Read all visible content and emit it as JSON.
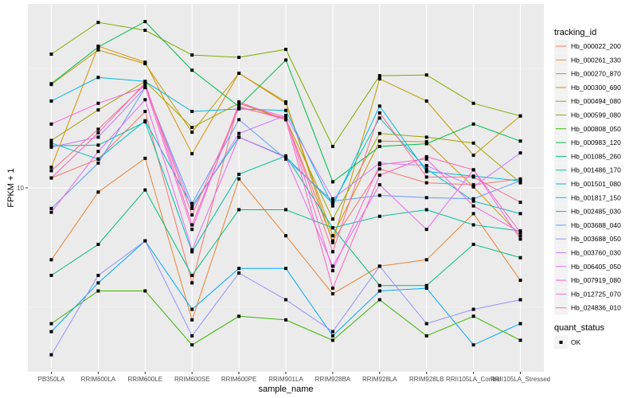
{
  "chart_data": {
    "type": "line",
    "title": "",
    "xlabel": "sample_name",
    "ylabel": "FPKM + 1",
    "yscale": "log10",
    "ylim": [
      1.7,
      60
    ],
    "y_ticks": [
      10
    ],
    "y_tick_labels": [
      "10"
    ],
    "grid": true,
    "legend_position": "right",
    "categories": [
      "PB350LA",
      "RRIM600LA",
      "RRIM600LE",
      "RRIM600SE",
      "RRIM600PE",
      "RRIM901LA",
      "RRIM928BA",
      "RRIM928LA",
      "RRIM928LB",
      "RRII105LA_Control",
      "RRII105LA_Stressed"
    ],
    "legend": {
      "color_title": "tracking_id",
      "shape_title": "quant_status",
      "shape_entries": [
        {
          "label": "OK",
          "symbol": "square"
        }
      ]
    },
    "series": [
      {
        "name": "Hb_000022_200",
        "color": "#F8766D",
        "values": [
          11.0,
          13.2,
          20.9,
          4.0,
          22.9,
          19.3,
          6.0,
          12.0,
          10.5,
          10.3,
          10.9
        ]
      },
      {
        "name": "Hb_000261_330",
        "color": "#EA8331",
        "values": [
          5.0,
          9.6,
          13.3,
          2.8,
          10.9,
          6.3,
          3.6,
          4.7,
          5.0,
          7.8,
          4.1
        ]
      },
      {
        "name": "Hb_000270_870",
        "color": "#D89000",
        "values": [
          12.2,
          39.2,
          33.6,
          13.9,
          30.2,
          22.6,
          6.3,
          15.7,
          15.6,
          10.1,
          6.3
        ]
      },
      {
        "name": "Hb_000300_690",
        "color": "#C09B00",
        "values": [
          27.1,
          37.8,
          33.1,
          17.1,
          30.2,
          22.9,
          5.9,
          28.6,
          23.1,
          13.7,
          20.0
        ]
      },
      {
        "name": "Hb_000494_080",
        "color": "#A3A500",
        "values": [
          15.8,
          21.2,
          27.9,
          17.9,
          22.6,
          19.3,
          7.4,
          16.9,
          16.3,
          15.4,
          10.5
        ]
      },
      {
        "name": "Hb_000599_080",
        "color": "#7CAE00",
        "values": [
          36.3,
          49.3,
          45.7,
          36.0,
          35.2,
          38.0,
          14.9,
          29.5,
          29.7,
          22.6,
          20.0
        ]
      },
      {
        "name": "Hb_000808_050",
        "color": "#39B600",
        "values": [
          2.7,
          3.7,
          3.7,
          2.2,
          2.9,
          2.8,
          2.3,
          3.4,
          2.4,
          2.9,
          2.3
        ]
      },
      {
        "name": "Hb_000983_120",
        "color": "#00BB4E",
        "values": [
          27.3,
          38.9,
          49.7,
          31.1,
          21.9,
          34.3,
          10.6,
          14.9,
          15.3,
          18.5,
          15.7
        ]
      },
      {
        "name": "Hb_001085_260",
        "color": "#00BF7D",
        "values": [
          4.3,
          5.8,
          9.8,
          4.3,
          8.1,
          8.1,
          6.8,
          3.9,
          3.9,
          5.8,
          5.1
        ]
      },
      {
        "name": "Hb_001486_170",
        "color": "#00C1A3",
        "values": [
          15.0,
          15.1,
          18.9,
          5.4,
          11.4,
          13.6,
          6.8,
          7.6,
          8.1,
          7.0,
          6.6
        ]
      },
      {
        "name": "Hb_001501_080",
        "color": "#00BFC4",
        "values": [
          15.4,
          13.2,
          19.1,
          8.4,
          16.3,
          13.5,
          8.6,
          19.6,
          12.0,
          8.8,
          7.8
        ]
      },
      {
        "name": "Hb_001817_150",
        "color": "#00B9E3",
        "values": [
          23.1,
          29.0,
          27.9,
          20.9,
          21.4,
          21.1,
          8.4,
          22.0,
          11.7,
          11.2,
          10.7
        ]
      },
      {
        "name": "Hb_002485_030",
        "color": "#00A9FF",
        "values": [
          2.5,
          4.0,
          6.0,
          3.1,
          4.6,
          4.6,
          2.4,
          3.7,
          3.8,
          2.2,
          2.7
        ]
      },
      {
        "name": "Hb_003688_040",
        "color": "#619CFF",
        "values": [
          8.2,
          12.7,
          26.3,
          8.6,
          19.3,
          13.2,
          8.8,
          9.3,
          9.1,
          9.0,
          10.7
        ]
      },
      {
        "name": "Hb_003688_050",
        "color": "#9590FF",
        "values": [
          2.0,
          4.3,
          6.0,
          2.4,
          4.4,
          3.4,
          2.5,
          4.7,
          2.7,
          3.1,
          3.4
        ]
      },
      {
        "name": "Hb_003760_030",
        "color": "#C77CFF",
        "values": [
          14.8,
          16.3,
          26.3,
          8.2,
          16.9,
          20.1,
          9.0,
          12.7,
          12.4,
          10.1,
          14.0
        ]
      },
      {
        "name": "Hb_006405_050",
        "color": "#E76BF3",
        "values": [
          7.9,
          14.2,
          23.4,
          5.5,
          16.3,
          13.4,
          4.7,
          10.3,
          6.7,
          11.9,
          6.1
        ]
      },
      {
        "name": "Hb_007919_080",
        "color": "#FA62DB",
        "values": [
          18.5,
          22.6,
          26.5,
          6.7,
          22.6,
          19.8,
          4.5,
          12.5,
          13.2,
          8.4,
          6.5
        ]
      },
      {
        "name": "Hb_012725_070",
        "color": "#FF62BC",
        "values": [
          11.0,
          17.0,
          27.5,
          7.0,
          21.9,
          19.3,
          3.8,
          11.3,
          13.5,
          11.9,
          6.5
        ]
      },
      {
        "name": "Hb_024836_010",
        "color": "#FF6C91",
        "values": [
          11.8,
          17.6,
          27.1,
          7.7,
          21.7,
          19.6,
          5.4,
          20.6,
          11.1,
          11.1,
          8.7
        ]
      }
    ]
  }
}
